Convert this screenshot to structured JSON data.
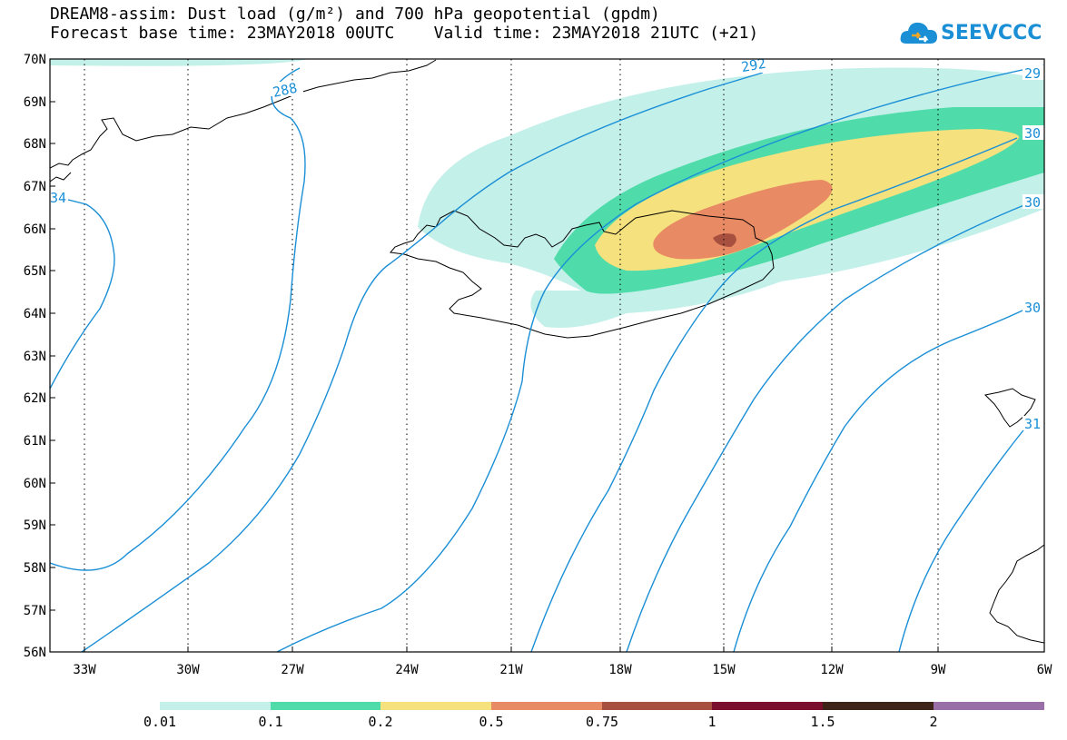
{
  "title": {
    "line1": "DREAM8-assim: Dust load (g/m²) and 700 hPa geopotential (gpdm)",
    "line2": "Forecast base time: 23MAY2018 00UTC    Valid time: 23MAY2018 21UTC (+21)"
  },
  "logo": {
    "text": "SEEVCCC",
    "color": "#1a8fd6"
  },
  "map": {
    "lat_labels": [
      "70N",
      "69N",
      "68N",
      "67N",
      "66N",
      "65N",
      "64N",
      "63N",
      "62N",
      "61N",
      "60N",
      "59N",
      "58N",
      "57N",
      "56N"
    ],
    "lon_labels": [
      "33W",
      "30W",
      "27W",
      "24W",
      "21W",
      "18W",
      "15W",
      "12W",
      "9W",
      "6W"
    ],
    "contour_labels": [
      "288",
      "292",
      "29",
      "30",
      "30",
      "30",
      "31",
      "34"
    ],
    "contour_color": "#1a8fd6"
  },
  "colorbar": {
    "colors": [
      "#c4f0ea",
      "#50dcaa",
      "#f5e17d",
      "#e88a64",
      "#a8503f",
      "#7a0f2e",
      "#3e2418",
      "#9a6fa8"
    ],
    "labels": [
      "0.01",
      "0.1",
      "0.2",
      "0.5",
      "0.75",
      "1",
      "1.5",
      "2"
    ]
  }
}
